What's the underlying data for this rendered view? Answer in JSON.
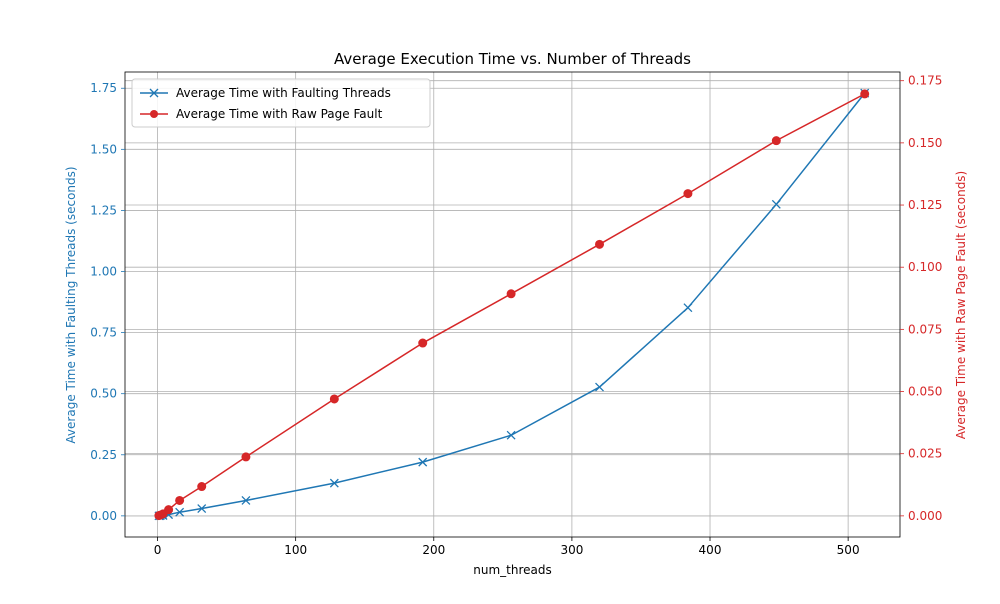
{
  "chart_data": {
    "type": "line",
    "title": "Average Execution Time vs. Number of Threads",
    "xlabel": "num_threads",
    "ylabel_left": "Average Time with Faulting Threads (seconds)",
    "ylabel_right": "Average Time with Raw Page Fault (seconds)",
    "xlim": [
      -23.55,
      537.55
    ],
    "ylim_left": [
      -0.0865,
      1.8165
    ],
    "ylim_right": [
      -0.0085,
      0.1785
    ],
    "xticks": [
      0,
      100,
      200,
      300,
      400,
      500
    ],
    "yticks_left": [
      0.0,
      0.25,
      0.5,
      0.75,
      1.0,
      1.25,
      1.5,
      1.75
    ],
    "yticks_right": [
      0.0,
      0.025,
      0.05,
      0.075,
      0.1,
      0.125,
      0.15,
      0.175
    ],
    "grid": true,
    "legend_position": "upper-left",
    "series": [
      {
        "name": "Average Time with Faulting Threads",
        "axis": "left",
        "color": "#1f77b4",
        "marker": "x",
        "x": [
          1,
          2,
          4,
          8,
          16,
          32,
          64,
          128,
          192,
          256,
          320,
          384,
          448,
          512
        ],
        "y": [
          0.0002,
          0.0005,
          0.0015,
          0.005,
          0.015,
          0.03,
          0.063,
          0.134,
          0.22,
          0.33,
          0.527,
          0.852,
          1.275,
          1.73
        ]
      },
      {
        "name": "Average Time with Raw Page Fault",
        "axis": "right",
        "color": "#d62728",
        "marker": "o",
        "x": [
          1,
          2,
          4,
          8,
          16,
          32,
          64,
          128,
          192,
          256,
          320,
          384,
          448,
          512
        ],
        "y": [
          0.0001,
          0.0003,
          0.0008,
          0.0025,
          0.0062,
          0.0118,
          0.0237,
          0.047,
          0.0695,
          0.0893,
          0.1092,
          0.1296,
          0.1509,
          0.1697
        ]
      }
    ]
  }
}
